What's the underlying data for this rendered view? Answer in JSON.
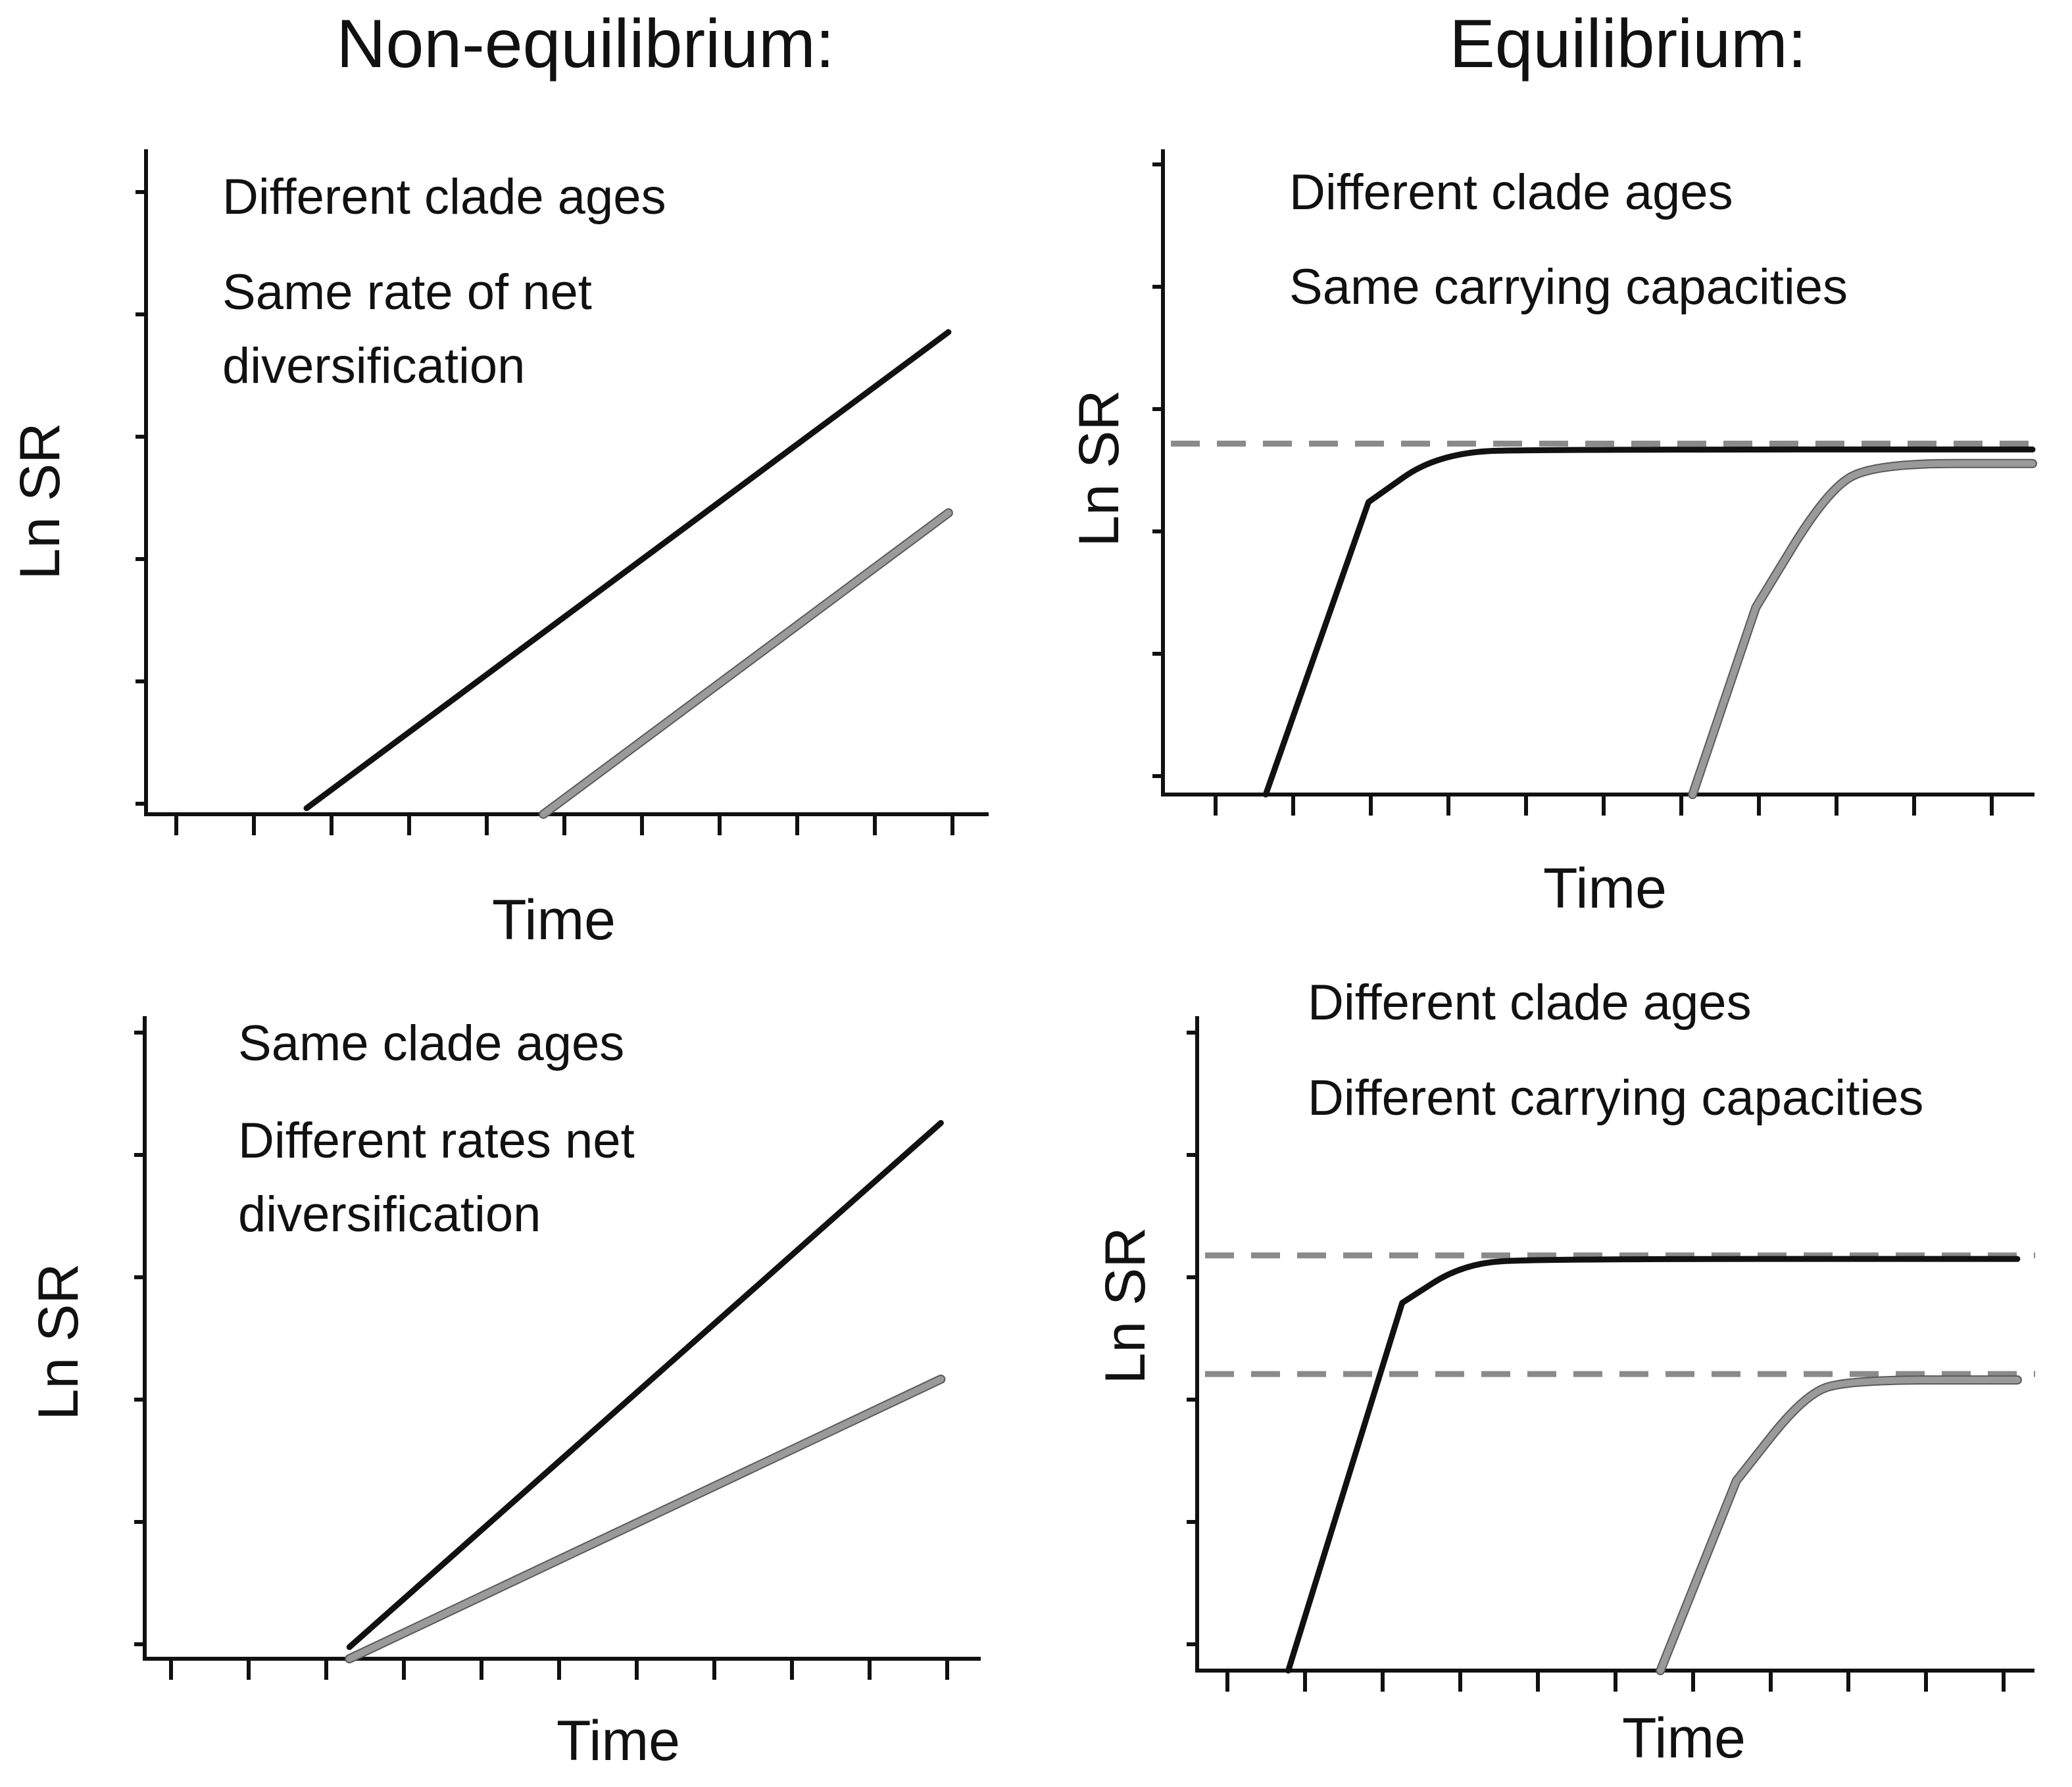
{
  "column_titles": {
    "left": "Non-equilibrium:",
    "right": "Equilibrium:"
  },
  "colors": {
    "clade_black": "#111111",
    "clade_gray": "#9a9a9a",
    "capacity_dashed": "#8a8a8a",
    "axis": "#111111"
  },
  "chart_data": [
    {
      "id": "top-left",
      "type": "line",
      "title": "",
      "xlabel": "Time",
      "ylabel": "Ln SR",
      "annotations": [
        "Different clade ages",
        "Same rate of net",
        "diversification"
      ],
      "xlim": [
        0,
        11
      ],
      "ylim": [
        0,
        5.5
      ],
      "x_ticks": 11,
      "y_ticks": 6,
      "grid": false,
      "series": [
        {
          "color": "clade_black",
          "points": [
            [
              2.1,
              0.05
            ],
            [
              10.5,
              4.0
            ]
          ]
        },
        {
          "color": "clade_gray",
          "points": [
            [
              5.2,
              0.0
            ],
            [
              10.5,
              2.5
            ]
          ]
        }
      ]
    },
    {
      "id": "top-right",
      "type": "line",
      "title": "",
      "xlabel": "Time",
      "ylabel": "Ln SR",
      "annotations": [
        "Different clade ages",
        "Same carrying capacities"
      ],
      "xlim": [
        0,
        11
      ],
      "ylim": [
        0,
        5.5
      ],
      "x_ticks": 11,
      "y_ticks": 6,
      "grid": false,
      "carrying_capacities": [
        3.0
      ],
      "series": [
        {
          "color": "clade_black",
          "points": [
            [
              1.3,
              0.0
            ],
            [
              2.6,
              2.5
            ],
            [
              3.5,
              2.93
            ],
            [
              5.0,
              2.95
            ],
            [
              11.0,
              2.95
            ]
          ]
        },
        {
          "color": "clade_gray",
          "points": [
            [
              6.7,
              0.0
            ],
            [
              7.5,
              1.6
            ],
            [
              8.4,
              2.6
            ],
            [
              9.0,
              2.83
            ],
            [
              11.0,
              2.83
            ]
          ]
        }
      ]
    },
    {
      "id": "bottom-left",
      "type": "line",
      "title": "",
      "xlabel": "Time",
      "ylabel": "Ln SR",
      "annotations": [
        "Same clade ages",
        "Different rates net",
        "diversification"
      ],
      "xlim": [
        0,
        11
      ],
      "ylim": [
        0,
        5.5
      ],
      "x_ticks": 11,
      "y_ticks": 6,
      "grid": false,
      "series": [
        {
          "color": "clade_black",
          "points": [
            [
              2.7,
              0.1
            ],
            [
              10.5,
              4.6
            ]
          ]
        },
        {
          "color": "clade_gray",
          "points": [
            [
              2.7,
              0.0
            ],
            [
              10.5,
              2.4
            ]
          ]
        }
      ]
    },
    {
      "id": "bottom-right",
      "type": "line",
      "title": "",
      "xlabel": "Time",
      "ylabel": "Ln SR",
      "annotations": [
        "Different clade ages",
        "Different carrying capacities"
      ],
      "xlim": [
        0,
        11
      ],
      "ylim": [
        0,
        5.5
      ],
      "x_ticks": 11,
      "y_ticks": 6,
      "grid": false,
      "carrying_capacities": [
        3.5,
        2.5
      ],
      "series": [
        {
          "color": "clade_black",
          "points": [
            [
              1.2,
              0.0
            ],
            [
              2.7,
              3.1
            ],
            [
              3.5,
              3.43
            ],
            [
              4.5,
              3.47
            ],
            [
              10.8,
              3.47
            ]
          ]
        },
        {
          "color": "clade_gray",
          "points": [
            [
              6.1,
              0.0
            ],
            [
              7.1,
              1.6
            ],
            [
              8.0,
              2.33
            ],
            [
              8.6,
              2.45
            ],
            [
              10.8,
              2.45
            ]
          ]
        }
      ]
    }
  ]
}
